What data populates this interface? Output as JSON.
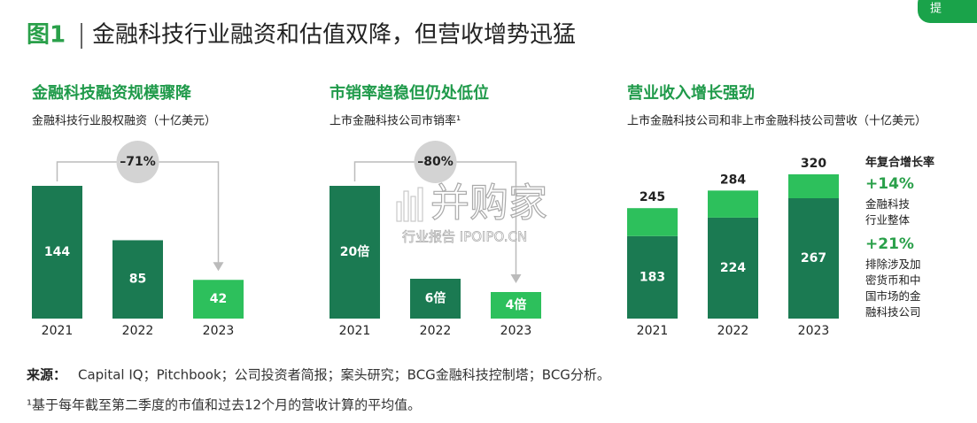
{
  "figure": {
    "label": "图1",
    "title": "金融科技行业融资和估值双降，但营收增势迅猛"
  },
  "button": {
    "label": "提"
  },
  "chart_data": [
    {
      "type": "bar",
      "title": "金融科技融资规模骤降",
      "subtitle": "金融科技行业股权融资（十亿美元）",
      "categories": [
        "2021",
        "2022",
        "2023"
      ],
      "values": [
        144,
        85,
        42
      ],
      "colors": [
        "#1b7a52",
        "#1b7a52",
        "#2dc05c"
      ],
      "annotation": "–71%"
    },
    {
      "type": "bar",
      "title": "市销率趋稳但仍处低位",
      "subtitle": "上市金融科技公司市销率¹",
      "categories": [
        "2021",
        "2022",
        "2023"
      ],
      "values": [
        20,
        6,
        4
      ],
      "value_labels": [
        "20倍",
        "6倍",
        "4倍"
      ],
      "colors": [
        "#1b7a52",
        "#1b7a52",
        "#2dc05c"
      ],
      "annotation": "–80%"
    },
    {
      "type": "stacked_bar",
      "title": "营业收入增长强劲",
      "subtitle": "上市金融科技公司和非上市金融科技公司营收（十亿美元）",
      "categories": [
        "2021",
        "2022",
        "2023"
      ],
      "series": [
        {
          "color": "#1b7a52",
          "values": [
            183,
            224,
            267
          ]
        },
        {
          "color": "#2dc05c",
          "values": [
            62,
            60,
            53
          ]
        }
      ],
      "totals": [
        245,
        284,
        320
      ],
      "cagr": {
        "title": "年复合增长率",
        "items": [
          {
            "rate": "+14%",
            "label": "金融科技行业整体"
          },
          {
            "rate": "+21%",
            "label": "排除涉及加密货币和中国市场的金融科技公司"
          }
        ]
      }
    }
  ],
  "watermark": {
    "brand": "并购家",
    "tagline": "行业报告 IPOIPO.CN"
  },
  "footer": {
    "source_label": "来源：",
    "source_text": "Capital IQ；Pitchbook；公司投资者简报；案头研究；BCG金融科技控制塔；BCG分析。",
    "note": "¹基于每年截至第二季度的市值和过去12个月的营收计算的平均值。"
  }
}
